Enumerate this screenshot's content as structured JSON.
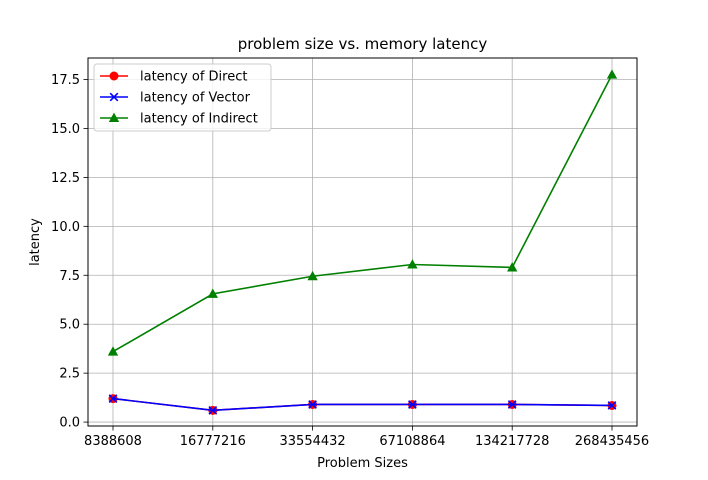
{
  "chart_data": {
    "type": "line",
    "title": "problem size vs. memory latency",
    "xlabel": "Problem Sizes",
    "ylabel": "latency",
    "categories": [
      "8388608",
      "16777216",
      "33554432",
      "67108864",
      "134217728",
      "268435456"
    ],
    "ylim": [
      -0.2,
      18.6
    ],
    "yticks": [
      "0.0",
      "2.5",
      "5.0",
      "7.5",
      "10.0",
      "12.5",
      "15.0",
      "17.5"
    ],
    "grid": true,
    "legend_position": "top-left",
    "series": [
      {
        "name": "latency of Direct",
        "values": [
          1.2,
          0.6,
          0.9,
          0.9,
          0.9,
          0.85
        ],
        "color": "#ff0000",
        "marker": "circle"
      },
      {
        "name": "latency of Vector",
        "values": [
          1.2,
          0.6,
          0.9,
          0.9,
          0.9,
          0.85
        ],
        "color": "#0000ff",
        "marker": "x"
      },
      {
        "name": "latency of Indirect",
        "values": [
          3.6,
          6.55,
          7.45,
          8.05,
          7.9,
          17.75
        ],
        "color": "#008000",
        "marker": "triangle"
      }
    ]
  }
}
